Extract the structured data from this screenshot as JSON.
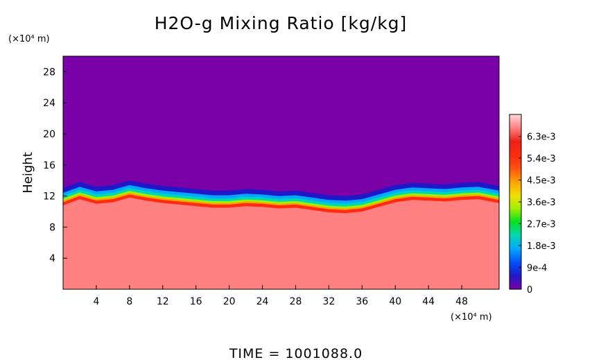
{
  "chart_data": {
    "type": "heatmap",
    "title": "H2O-g Mixing Ratio [kg/kg]",
    "ylabel": "Height",
    "x_unit": "(×10⁴ m)",
    "y_unit": "(×10⁴ m)",
    "xlim": [
      0,
      52.5
    ],
    "ylim": [
      0,
      30
    ],
    "x_ticks": [
      4,
      8,
      12,
      16,
      20,
      24,
      28,
      32,
      36,
      40,
      44,
      48
    ],
    "y_ticks": [
      4,
      8,
      12,
      16,
      20,
      24,
      28
    ],
    "colorbar": {
      "range": [
        0,
        0.0072
      ],
      "ticks": [
        {
          "value": 0,
          "label": "0"
        },
        {
          "value": 0.0009,
          "label": "9e-4"
        },
        {
          "value": 0.0018,
          "label": "1.8e-3"
        },
        {
          "value": 0.0027,
          "label": "2.7e-3"
        },
        {
          "value": 0.0036,
          "label": "3.6e-3"
        },
        {
          "value": 0.0045,
          "label": "4.5e-3"
        },
        {
          "value": 0.0054,
          "label": "5.4e-3"
        },
        {
          "value": 0.0063,
          "label": "6.3e-3"
        }
      ],
      "colors": [
        "#7a00a8",
        "#2018c8",
        "#0050ff",
        "#00a8ff",
        "#00d8b0",
        "#00e020",
        "#a0f000",
        "#f0e000",
        "#ffa000",
        "#ff5010",
        "#ff2a10",
        "#f02018",
        "#ff8080",
        "#ffd8d8"
      ]
    },
    "field": {
      "description": "moist lower layer with dry upper layer",
      "interface_height": [
        [
          0,
          11.2
        ],
        [
          2,
          12.0
        ],
        [
          4,
          11.4
        ],
        [
          6,
          11.6
        ],
        [
          8,
          12.2
        ],
        [
          10,
          11.8
        ],
        [
          12,
          11.5
        ],
        [
          14,
          11.3
        ],
        [
          16,
          11.1
        ],
        [
          18,
          10.9
        ],
        [
          20,
          10.9
        ],
        [
          22,
          11.1
        ],
        [
          24,
          11.0
        ],
        [
          26,
          10.8
        ],
        [
          28,
          10.9
        ],
        [
          30,
          10.6
        ],
        [
          32,
          10.3
        ],
        [
          34,
          10.2
        ],
        [
          36,
          10.4
        ],
        [
          38,
          11.0
        ],
        [
          40,
          11.6
        ],
        [
          42,
          11.9
        ],
        [
          44,
          11.8
        ],
        [
          46,
          11.7
        ],
        [
          48,
          11.9
        ],
        [
          50,
          12.0
        ],
        [
          52.5,
          11.5
        ]
      ],
      "lower_value": 0.0066,
      "upper_value": 0.0
    },
    "time_label": "TIME  =  1001088.0"
  }
}
